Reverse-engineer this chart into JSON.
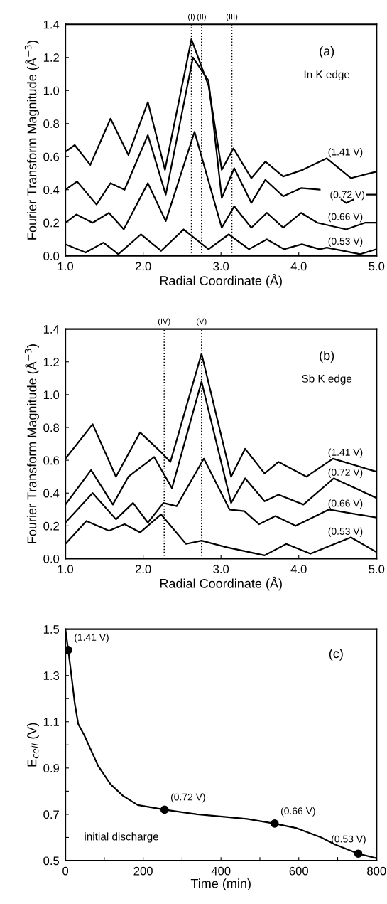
{
  "chart_data": [
    {
      "type": "line",
      "xlabel": "Radial Coordinate (Å)",
      "ylabel": "Fourier Transform Magnitude (Å$^{−3}$)",
      "annotations": [
        "(a)",
        "In K edge"
      ],
      "xlim": [
        1.0,
        5.0
      ],
      "xticks": [
        {
          "value": 1.0,
          "label": "1.0"
        },
        {
          "value": 2.0,
          "label": "2.0"
        },
        {
          "value": 3.0,
          "label": "3.0"
        },
        {
          "value": 4.0,
          "label": "4.0"
        },
        {
          "value": 5.0,
          "label": "5.0"
        }
      ],
      "ylim": [
        0.0,
        1.4
      ],
      "yticks": [
        {
          "value": 0.0,
          "label": "0.0"
        },
        0.2,
        0.4,
        0.6,
        0.8,
        {
          "value": 1.0,
          "label": "1.0"
        },
        1.2,
        1.4
      ],
      "grid": false,
      "ref_lines": [
        {
          "axis": "x",
          "value": 2.62,
          "label": "(I)",
          "line_style": "dotted",
          "color": "#000000"
        },
        {
          "axis": "x",
          "value": 2.75,
          "label": "(II)",
          "line_style": "dotted",
          "color": "#000000"
        },
        {
          "axis": "x",
          "value": 3.14,
          "label": "(III)",
          "line_style": "dotted",
          "color": "#000000"
        }
      ],
      "series": [
        {
          "name": "(1.41 V)",
          "color": "#000000",
          "x": [
            1.0,
            1.12,
            1.32,
            1.58,
            1.81,
            2.06,
            2.28,
            2.62,
            2.84,
            3.01,
            3.16,
            3.39,
            3.57,
            3.8,
            4.05,
            4.36,
            4.67,
            5.0
          ],
          "values": [
            0.63,
            0.67,
            0.55,
            0.83,
            0.61,
            0.93,
            0.52,
            1.31,
            1.03,
            0.52,
            0.65,
            0.47,
            0.57,
            0.48,
            0.52,
            0.59,
            0.47,
            0.51
          ]
        },
        {
          "name": "(0.72 V)",
          "color": "#000000",
          "x": [
            1.0,
            1.15,
            1.4,
            1.58,
            1.76,
            2.06,
            2.29,
            2.64,
            2.84,
            3.01,
            3.17,
            3.39,
            3.57,
            3.8,
            4.03,
            4.27,
            4.45,
            4.55,
            4.61,
            4.7,
            4.8,
            4.88,
            5.0
          ],
          "values": [
            0.4,
            0.45,
            0.31,
            0.44,
            0.4,
            0.73,
            0.37,
            1.2,
            1.06,
            0.35,
            0.53,
            0.32,
            0.46,
            0.36,
            0.41,
            0.4,
            null,
            0.34,
            0.32,
            0.34,
            null,
            0.37,
            0.37
          ]
        },
        {
          "name": "(0.66 V)",
          "color": "#000000",
          "x": [
            1.0,
            1.14,
            1.35,
            1.56,
            1.75,
            2.06,
            2.29,
            2.66,
            3.01,
            3.17,
            3.39,
            3.59,
            3.8,
            4.03,
            4.24,
            4.61,
            4.85,
            5.0
          ],
          "values": [
            0.2,
            0.25,
            0.2,
            0.26,
            0.16,
            0.44,
            0.21,
            0.75,
            0.17,
            0.3,
            0.17,
            0.26,
            0.17,
            0.26,
            0.2,
            0.16,
            0.2,
            0.2
          ]
        },
        {
          "name": "(0.53 V)",
          "color": "#000000",
          "x": [
            1.0,
            1.26,
            1.49,
            1.68,
            1.97,
            2.23,
            2.52,
            2.84,
            3.1,
            3.36,
            3.59,
            3.81,
            4.04,
            4.27,
            4.36,
            4.79,
            5.0
          ],
          "values": [
            0.07,
            0.02,
            0.08,
            0.01,
            0.13,
            0.03,
            0.16,
            0.04,
            0.13,
            0.04,
            0.1,
            0.04,
            0.07,
            0.04,
            0.05,
            0.01,
            0.04
          ]
        }
      ]
    },
    {
      "type": "line",
      "xlabel": "Radial Coordinate (Å)",
      "ylabel": "Fourier Transform Magnitude (Å$^{−3}$)",
      "annotations": [
        "(b)",
        "Sb K edge"
      ],
      "xlim": [
        1.0,
        5.0
      ],
      "xticks": [
        {
          "value": 1.0,
          "label": "1.0"
        },
        {
          "value": 2.0,
          "label": "2.0"
        },
        {
          "value": 3.0,
          "label": "3.0"
        },
        {
          "value": 4.0,
          "label": "4.0"
        },
        {
          "value": 5.0,
          "label": "5.0"
        }
      ],
      "ylim": [
        0.0,
        1.4
      ],
      "yticks": [
        {
          "value": 0.0,
          "label": "0.0"
        },
        0.2,
        0.4,
        0.6,
        0.8,
        {
          "value": 1.0,
          "label": "1.0"
        },
        1.2,
        1.4
      ],
      "grid": false,
      "ref_lines": [
        {
          "axis": "x",
          "value": 2.27,
          "label": "(IV)",
          "line_style": "dotted",
          "color": "#000000"
        },
        {
          "axis": "x",
          "value": 2.75,
          "label": "(V)",
          "line_style": "dotted",
          "color": "#000000"
        }
      ],
      "series": [
        {
          "name": "(1.41 V)",
          "color": "#000000",
          "x": [
            1.0,
            1.35,
            1.65,
            1.96,
            2.25,
            2.35,
            2.75,
            3.13,
            3.31,
            3.56,
            3.74,
            4.1,
            4.44,
            5.0
          ],
          "values": [
            0.61,
            0.82,
            0.5,
            0.77,
            0.64,
            0.59,
            1.25,
            0.5,
            0.67,
            0.52,
            0.59,
            0.5,
            0.61,
            0.53
          ]
        },
        {
          "name": "(0.72 V)",
          "color": "#000000",
          "x": [
            1.0,
            1.33,
            1.61,
            1.81,
            2.14,
            2.37,
            2.75,
            3.13,
            3.31,
            3.56,
            3.74,
            4.06,
            4.45,
            5.0
          ],
          "values": [
            0.33,
            0.54,
            0.33,
            0.5,
            0.62,
            0.43,
            1.08,
            0.34,
            0.49,
            0.35,
            0.39,
            0.33,
            0.49,
            0.37
          ]
        },
        {
          "name": "(0.66 V)",
          "color": "#000000",
          "x": [
            1.0,
            1.35,
            1.65,
            1.87,
            2.06,
            2.26,
            2.43,
            2.78,
            3.11,
            3.3,
            3.49,
            3.7,
            3.96,
            4.39,
            5.0
          ],
          "values": [
            0.22,
            0.4,
            0.24,
            0.34,
            0.22,
            0.34,
            0.32,
            0.61,
            0.3,
            0.29,
            0.21,
            0.26,
            0.2,
            0.3,
            0.25
          ]
        },
        {
          "name": "(0.53 V)",
          "color": "#000000",
          "x": [
            1.0,
            1.27,
            1.56,
            1.76,
            1.96,
            2.23,
            2.55,
            2.75,
            3.07,
            3.56,
            3.84,
            4.15,
            4.67,
            5.0
          ],
          "values": [
            0.09,
            0.23,
            0.17,
            0.21,
            0.16,
            0.27,
            0.09,
            0.11,
            0.07,
            0.02,
            0.09,
            0.03,
            0.13,
            0.04
          ]
        }
      ]
    },
    {
      "type": "line",
      "xlabel": "Time (min)",
      "ylabel": "E$_{cell}$ (V)",
      "annotations": [
        "(c)",
        "initial discharge"
      ],
      "xlim": [
        0,
        800
      ],
      "xticks": [
        0,
        {
          "value": 100,
          "label": null
        },
        200,
        {
          "value": 300,
          "label": null
        },
        400,
        {
          "value": 500,
          "label": null
        },
        600,
        {
          "value": 700,
          "label": null
        },
        800
      ],
      "ylim": [
        0.5,
        1.5
      ],
      "yticks": [
        0.5,
        {
          "value": 0.6,
          "label": null
        },
        0.7,
        {
          "value": 0.8,
          "label": null
        },
        0.9,
        {
          "value": 1.0,
          "label": null
        },
        1.1,
        {
          "value": 1.2,
          "label": null
        },
        1.3,
        {
          "value": 1.4,
          "label": null
        },
        1.5
      ],
      "grid": false,
      "series": [
        {
          "color": "#000000",
          "x": [
            0,
            8,
            14,
            24,
            33,
            49,
            84,
            116,
            148,
            186,
            255,
            339,
            467,
            537,
            595,
            658,
            693,
            753,
            800
          ],
          "values": [
            1.5,
            1.4,
            1.32,
            1.18,
            1.09,
            1.04,
            0.91,
            0.83,
            0.78,
            0.74,
            0.72,
            0.7,
            0.68,
            0.66,
            0.64,
            0.6,
            0.57,
            0.53,
            0.51
          ]
        },
        {
          "type": "scatter",
          "marker": "circle",
          "color": "#000000",
          "x": [
            7,
            255,
            538,
            753
          ],
          "values": [
            1.41,
            0.72,
            0.66,
            0.53
          ],
          "value_labels": [
            "(1.41 V)",
            "(0.72 V)",
            "(0.66 V)",
            "(0.53 V)"
          ]
        }
      ]
    }
  ]
}
